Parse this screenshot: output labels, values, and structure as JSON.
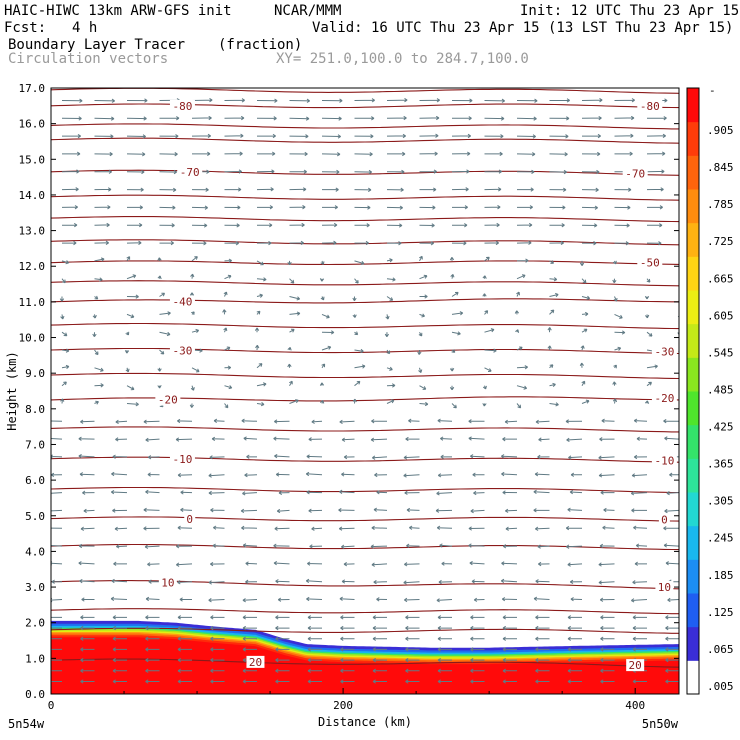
{
  "header": {
    "model": "HAIC-HIWC 13km ARW-GFS init",
    "org": "NCAR/MMM",
    "init": "Init: 12 UTC Thu 23 Apr 15",
    "fcst_label": "Fcst:",
    "fcst_value": "4 h",
    "valid": "Valid: 16 UTC Thu 23 Apr 15 (13 LST Thu 23 Apr 15)",
    "field_name": "Boundary Layer Tracer",
    "field_units": "(fraction)",
    "vectors": "Circulation vectors",
    "xy": "XY= 251.0,100.0 to 284.7,100.0"
  },
  "colors": {
    "contour": "#8b1a1a",
    "vector": "#607a84",
    "tracer_ramp": [
      "#ffffff",
      "#3a2dd6",
      "#1f6ef0",
      "#19b4ee",
      "#2ddcc8",
      "#34e36a",
      "#5be52a",
      "#a7e81c",
      "#e2ec14",
      "#ffd014",
      "#ffa010",
      "#ff6a0c",
      "#ff2a0a",
      "#ff0a0a"
    ]
  },
  "chart_data": {
    "type": "contour cross-section with shaded field and wind vectors",
    "xlabel": "Distance (km)",
    "ylabel": "Height (km)",
    "xlim": [
      0,
      430
    ],
    "ylim": [
      0,
      17
    ],
    "x_ticks": [
      "0",
      "200",
      "400"
    ],
    "x_end_labels": [
      "5n54w",
      "5n50w"
    ],
    "y_ticks": [
      "0.0",
      "1.0",
      "2.0",
      "3.0",
      "4.0",
      "5.0",
      "6.0",
      "7.0",
      "8.0",
      "9.0",
      "10.0",
      "11.0",
      "12.0",
      "13.0",
      "14.0",
      "15.0",
      "16.0",
      "17.0"
    ],
    "colorbar_labels": [
      ".005",
      ".065",
      ".125",
      ".185",
      ".245",
      ".305",
      ".365",
      ".425",
      ".485",
      ".545",
      ".605",
      ".665",
      ".725",
      ".785",
      ".845",
      ".905"
    ],
    "colorbar_top_label": "-",
    "tracer_top_km": {
      "x_km": [
        0,
        60,
        85,
        110,
        140,
        160,
        175,
        200,
        260,
        300,
        360,
        430
      ],
      "top_km": [
        2.05,
        2.05,
        2.0,
        1.9,
        1.8,
        1.55,
        1.4,
        1.35,
        1.3,
        1.3,
        1.35,
        1.4
      ]
    },
    "temperature_contours": [
      {
        "label": "20",
        "left_km": 0.95,
        "right_km": 0.8,
        "label_x_km": 140,
        "label_x2_km": 400
      },
      {
        "label": "10",
        "left_km": 3.15,
        "right_km": 3.0,
        "label_x_km": 80,
        "label_x2_km": 420
      },
      {
        "label": "0",
        "left_km": 4.92,
        "right_km": 4.9,
        "label_x_km": 95,
        "label_x2_km": 420
      },
      {
        "label": "-10",
        "left_km": 6.6,
        "right_km": 6.55,
        "label_x_km": 90,
        "label_x2_km": 420
      },
      {
        "label": "-20",
        "left_km": 8.25,
        "right_km": 8.3,
        "label_x_km": 80,
        "label_x2_km": 420
      },
      {
        "label": "-30",
        "left_km": 9.65,
        "right_km": 9.6,
        "label_x_km": 90,
        "label_x2_km": 420
      },
      {
        "label": "-40",
        "left_km": 11.0,
        "right_km": 11.05,
        "label_x_km": 90,
        "label_x2_km": null
      },
      {
        "label": "-50",
        "left_km": 12.1,
        "right_km": 12.1,
        "label_x_km": null,
        "label_x2_km": 410
      },
      {
        "label": "-70",
        "left_km": 14.65,
        "right_km": 14.6,
        "label_x_km": 95,
        "label_x2_km": 400
      },
      {
        "label": "-80",
        "left_km": 16.5,
        "right_km": 16.5,
        "label_x_km": 90,
        "label_x2_km": 410
      }
    ],
    "unlabeled_contour_heights_km": [
      1.8,
      2.35,
      4.15,
      5.75,
      7.45,
      8.95,
      10.35,
      11.55,
      12.7,
      13.35,
      13.95,
      15.55,
      15.95,
      16.95
    ]
  }
}
